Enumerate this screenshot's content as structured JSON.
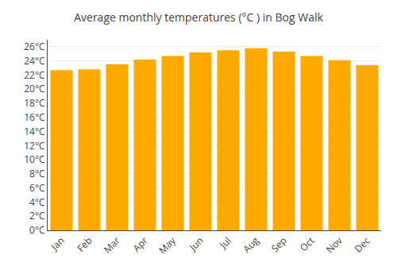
{
  "chart_data": {
    "type": "bar",
    "title": "Average monthly temperatures (°C ) in Bog Walk",
    "categories": [
      "Jan",
      "Feb",
      "Mar",
      "Apr",
      "May",
      "Jun",
      "Jul",
      "Aug",
      "Sep",
      "Oct",
      "Nov",
      "Dec"
    ],
    "values": [
      22.7,
      22.8,
      23.5,
      24.2,
      24.7,
      25.2,
      25.5,
      25.8,
      25.3,
      24.7,
      24.1,
      23.4
    ],
    "color": "#FFAA00",
    "ylim": [
      0,
      27
    ],
    "yticks": [
      {
        "value": 0,
        "label": "0°C"
      },
      {
        "value": 2,
        "label": "2°C"
      },
      {
        "value": 4,
        "label": "4°C"
      },
      {
        "value": 6,
        "label": "6°C"
      },
      {
        "value": 8,
        "label": "8°C"
      },
      {
        "value": 10,
        "label": "10°C"
      },
      {
        "value": 12,
        "label": "12°C"
      },
      {
        "value": 14,
        "label": "14°C"
      },
      {
        "value": 16,
        "label": "16°C"
      },
      {
        "value": 18,
        "label": "18°C"
      },
      {
        "value": 20,
        "label": "20°C"
      },
      {
        "value": 22,
        "label": "22°C"
      },
      {
        "value": 24,
        "label": "24°C"
      },
      {
        "value": 26,
        "label": "26°C"
      }
    ],
    "grid": true
  }
}
